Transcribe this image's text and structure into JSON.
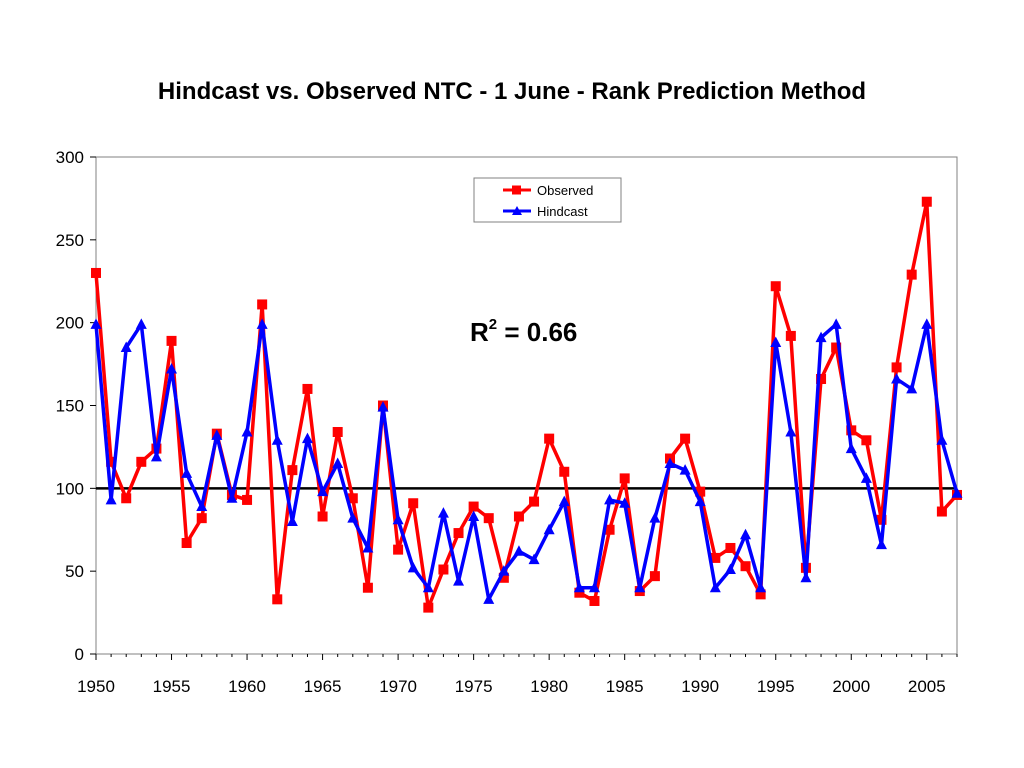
{
  "chart_data": {
    "type": "line",
    "title": "Hindcast vs. Observed NTC - 1 June - Rank Prediction Method",
    "xlabel": "",
    "ylabel": "",
    "xlim": [
      1950,
      2007
    ],
    "ylim": [
      0,
      300
    ],
    "xticks": [
      "1950",
      "1955",
      "1960",
      "1965",
      "1970",
      "1975",
      "1980",
      "1985",
      "1990",
      "1995",
      "2000",
      "2005"
    ],
    "yticks": [
      "0",
      "50",
      "100",
      "150",
      "200",
      "250",
      "300"
    ],
    "reference_line": 100,
    "grid": false,
    "legend_position": "top-center",
    "annotation": {
      "base": "R",
      "sup": "2",
      "rest": " = 0.66"
    },
    "x": [
      1950,
      1951,
      1952,
      1953,
      1954,
      1955,
      1956,
      1957,
      1958,
      1959,
      1960,
      1961,
      1962,
      1963,
      1964,
      1965,
      1966,
      1967,
      1968,
      1969,
      1970,
      1971,
      1972,
      1973,
      1974,
      1975,
      1976,
      1977,
      1978,
      1979,
      1980,
      1981,
      1982,
      1983,
      1984,
      1985,
      1986,
      1987,
      1988,
      1989,
      1990,
      1991,
      1992,
      1993,
      1994,
      1995,
      1996,
      1997,
      1998,
      1999,
      2000,
      2001,
      2002,
      2003,
      2004,
      2005,
      2006,
      2007
    ],
    "series": [
      {
        "name": "Observed",
        "color": "#ff0000",
        "marker": "square",
        "values": [
          230,
          116,
          94,
          116,
          124,
          189,
          67,
          82,
          133,
          96,
          93,
          211,
          33,
          111,
          160,
          83,
          134,
          94,
          40,
          150,
          63,
          91,
          28,
          51,
          73,
          89,
          82,
          46,
          83,
          92,
          130,
          110,
          37,
          32,
          75,
          106,
          38,
          47,
          118,
          130,
          98,
          58,
          64,
          53,
          36,
          222,
          192,
          52,
          166,
          185,
          135,
          129,
          81,
          173,
          229,
          273,
          86,
          96
        ]
      },
      {
        "name": "Hindcast",
        "color": "#0000ff",
        "marker": "triangle",
        "values": [
          199,
          93,
          185,
          199,
          119,
          172,
          109,
          89,
          132,
          94,
          134,
          199,
          129,
          80,
          130,
          98,
          115,
          82,
          64,
          149,
          81,
          52,
          40,
          85,
          44,
          83,
          33,
          50,
          62,
          57,
          75,
          92,
          40,
          40,
          93,
          91,
          40,
          82,
          115,
          111,
          92,
          40,
          51,
          72,
          40,
          188,
          134,
          46,
          191,
          199,
          124,
          106,
          66,
          166,
          160,
          199,
          129,
          97
        ]
      }
    ]
  }
}
